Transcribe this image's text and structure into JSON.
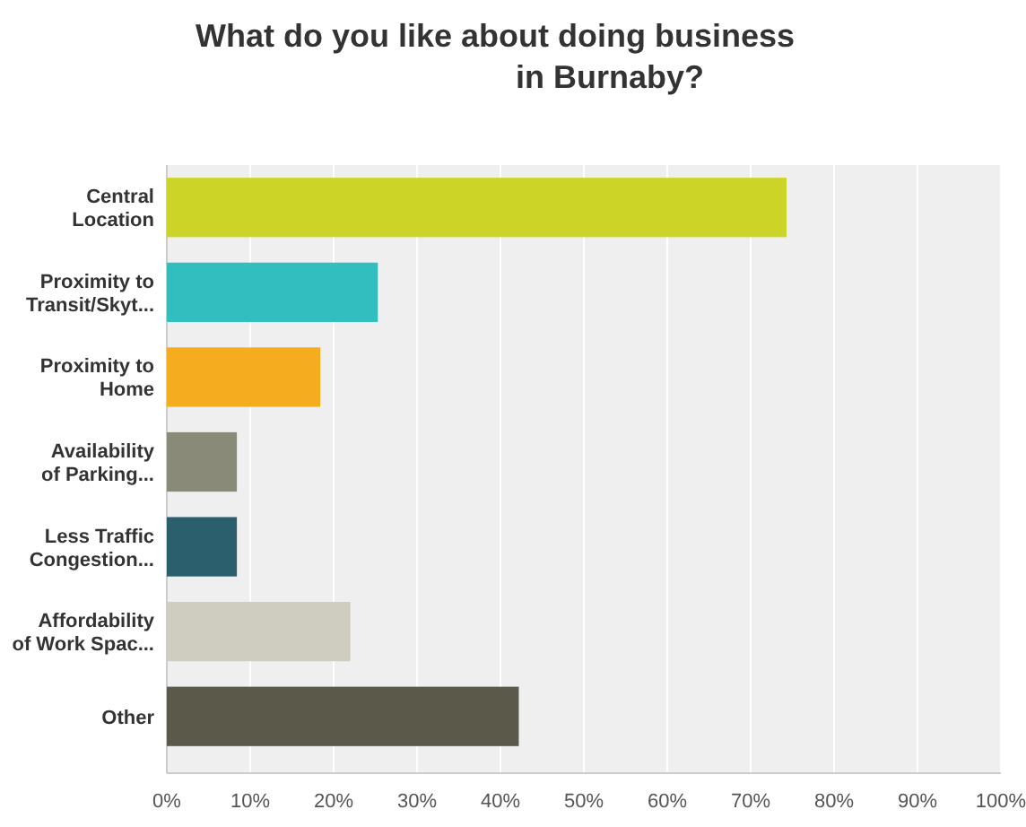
{
  "chart_data": {
    "type": "bar",
    "orientation": "horizontal",
    "title": "What do you like about doing business\nin Burnaby?",
    "categories": [
      "Central\nLocation",
      "Proximity to\nTransit/Skyt...",
      "Proximity to\nHome",
      "Availability\nof Parking...",
      "Less Traffic\nCongestion...",
      "Affordability\nof Work Spac...",
      "Other"
    ],
    "values": [
      74.3,
      25.3,
      18.4,
      8.4,
      8.4,
      22.0,
      42.2
    ],
    "colors": [
      "#cdd428",
      "#32bdbf",
      "#f5ac1f",
      "#8a8a78",
      "#2c5f6e",
      "#cfcdbf",
      "#5b594a"
    ],
    "xlim": [
      0,
      100
    ],
    "xticks": [
      {
        "value": 0,
        "label": "0%"
      },
      {
        "value": 10,
        "label": "10%"
      },
      {
        "value": 20,
        "label": "20%"
      },
      {
        "value": 30,
        "label": "30%"
      },
      {
        "value": 40,
        "label": "40%"
      },
      {
        "value": 50,
        "label": "50%"
      },
      {
        "value": 60,
        "label": "60%"
      },
      {
        "value": 70,
        "label": "70%"
      },
      {
        "value": 80,
        "label": "80%"
      },
      {
        "value": 90,
        "label": "90%"
      },
      {
        "value": 100,
        "label": "100%"
      }
    ],
    "grid": "x"
  }
}
